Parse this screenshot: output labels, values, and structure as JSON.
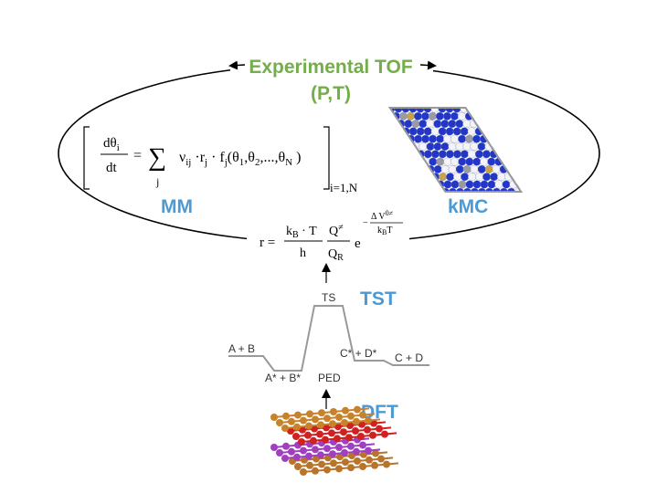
{
  "title": {
    "line1": "Experimental TOF",
    "line2": "(P,T)"
  },
  "labels": {
    "mm": "MM",
    "kmc": "kMC",
    "tst": "TST",
    "dft": "DFT"
  },
  "mm_equation": {
    "numerator": "dθ",
    "numerator_sub": "i",
    "denominator": "dt",
    "equals": "=",
    "sum": "∑",
    "sum_index": "j",
    "terms": [
      [
        "ν",
        "ij"
      ],
      [
        " ·r",
        "j"
      ],
      [
        " · f",
        "j"
      ],
      [
        "(θ",
        "1"
      ],
      [
        ",θ",
        "2"
      ],
      [
        ",...,θ",
        "N"
      ]
    ],
    "close": " )",
    "range": "i=1,N"
  },
  "tst_equation": {
    "lhs": "r =",
    "k": "k",
    "k_sub": "B",
    "times_t": " · T",
    "h": "h",
    "q": "Q",
    "q_sup": "≠",
    "q_r": "Q",
    "q_r_sub": "R",
    "e": "e",
    "minus": "−",
    "delta_v": "Δ V",
    "delta_v_sup": "0≠",
    "exp_k": "k",
    "exp_k_sub": "B",
    "exp_t": "T"
  },
  "ped": {
    "states": [
      "A + B",
      "A* + B*",
      "TS",
      "C* + D*",
      "C + D"
    ],
    "caption": "PED"
  }
}
